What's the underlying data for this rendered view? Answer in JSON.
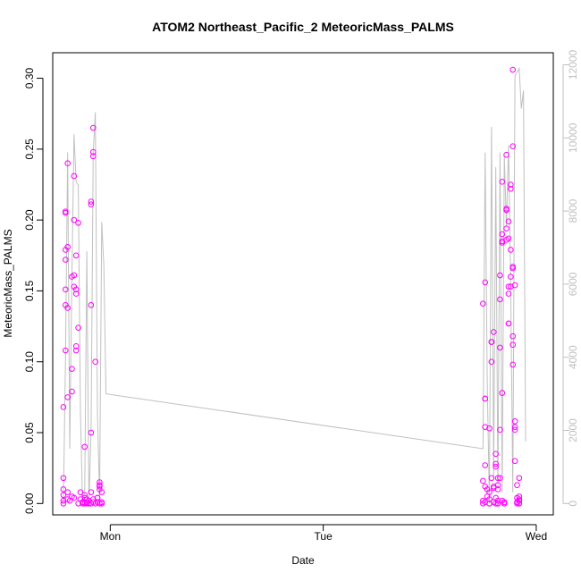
{
  "chart_data": {
    "type": "scatter",
    "title": "ATOM2 Northeast_Pacific_2 MeteoricMass_PALMS",
    "xlabel": "Date",
    "ylabel": "MeteoricMass_PALMS",
    "x_unit": "days (Sun 00:00 = 0)",
    "x_ticks": [
      {
        "value": 1,
        "label": "Mon"
      },
      {
        "value": 2,
        "label": "Tue"
      },
      {
        "value": 3,
        "label": "Wed"
      }
    ],
    "xlim": [
      0.73,
      3.08
    ],
    "ylim": [
      -0.008,
      0.318
    ],
    "y_ticks": [
      0.0,
      0.05,
      0.1,
      0.15,
      0.2,
      0.25,
      0.3
    ],
    "y_tick_labels": [
      "0.00",
      "0.05",
      "0.10",
      "0.15",
      "0.20",
      "0.25",
      "0.30"
    ],
    "y2_ticks": [
      0,
      2000,
      4000,
      6000,
      8000,
      10000,
      12000
    ],
    "y2_tick_labels": [
      "0",
      "2000",
      "4000",
      "6000",
      "8000",
      "10000",
      "12000"
    ],
    "y2_lim": [
      -310,
      12330
    ],
    "grid": false,
    "colors": {
      "points": "#ff00ff",
      "line": "#c0c0c0",
      "axis": "#000000",
      "right_axis": "#c0c0c0"
    },
    "series": [
      {
        "kind": "points",
        "points": [
          [
            0.78,
            0.0
          ],
          [
            0.78,
            0.002
          ],
          [
            0.78,
            0.006
          ],
          [
            0.78,
            0.01
          ],
          [
            0.78,
            0.018
          ],
          [
            0.78,
            0.068
          ],
          [
            0.79,
            0.108
          ],
          [
            0.79,
            0.14
          ],
          [
            0.79,
            0.151
          ],
          [
            0.79,
            0.172
          ],
          [
            0.79,
            0.179
          ],
          [
            0.79,
            0.205
          ],
          [
            0.79,
            0.206
          ],
          [
            0.8,
            0.24
          ],
          [
            0.8,
            0.181
          ],
          [
            0.8,
            0.138
          ],
          [
            0.8,
            0.075
          ],
          [
            0.8,
            0.008
          ],
          [
            0.8,
            0.003
          ],
          [
            0.81,
            0.002
          ],
          [
            0.82,
            0.005
          ],
          [
            0.82,
            0.095
          ],
          [
            0.82,
            0.079
          ],
          [
            0.82,
            0.16
          ],
          [
            0.83,
            0.231
          ],
          [
            0.83,
            0.2
          ],
          [
            0.83,
            0.161
          ],
          [
            0.83,
            0.153
          ],
          [
            0.83,
            0.004
          ],
          [
            0.84,
            0.108
          ],
          [
            0.84,
            0.111
          ],
          [
            0.84,
            0.148
          ],
          [
            0.84,
            0.175
          ],
          [
            0.84,
            0.151
          ],
          [
            0.85,
            0.124
          ],
          [
            0.85,
            0.198
          ],
          [
            0.85,
            0.0
          ],
          [
            0.86,
            0.008
          ],
          [
            0.86,
            0.003
          ],
          [
            0.87,
            0.0
          ],
          [
            0.87,
            0.001
          ],
          [
            0.87,
            0.001
          ],
          [
            0.88,
            0.04
          ],
          [
            0.88,
            0.004
          ],
          [
            0.88,
            0.006
          ],
          [
            0.88,
            0.0
          ],
          [
            0.89,
            0.003
          ],
          [
            0.89,
            0.001
          ],
          [
            0.89,
            0.0
          ],
          [
            0.9,
            0.002
          ],
          [
            0.9,
            0.0
          ],
          [
            0.91,
            0.008
          ],
          [
            0.91,
            0.0
          ],
          [
            0.91,
            0.05
          ],
          [
            0.91,
            0.14
          ],
          [
            0.91,
            0.213
          ],
          [
            0.91,
            0.211
          ],
          [
            0.92,
            0.245
          ],
          [
            0.92,
            0.248
          ],
          [
            0.92,
            0.265
          ],
          [
            0.92,
            0.001
          ],
          [
            0.92,
            0.003
          ],
          [
            0.93,
            0.1
          ],
          [
            0.93,
            0.0
          ],
          [
            0.94,
            0.004
          ],
          [
            0.94,
            0.004
          ],
          [
            0.94,
            0.001
          ],
          [
            0.95,
            0.0
          ],
          [
            0.95,
            0.012
          ],
          [
            0.95,
            0.015
          ],
          [
            0.95,
            0.013
          ],
          [
            0.95,
            0.01
          ],
          [
            0.96,
            0.008
          ],
          [
            0.96,
            0.001
          ],
          [
            0.96,
            0.0
          ],
          [
            2.75,
            0.141
          ],
          [
            2.75,
            0.016
          ],
          [
            2.75,
            0.0
          ],
          [
            2.75,
            0.002
          ],
          [
            2.76,
            0.074
          ],
          [
            2.76,
            0.074
          ],
          [
            2.76,
            0.054
          ],
          [
            2.76,
            0.156
          ],
          [
            2.76,
            0.027
          ],
          [
            2.76,
            0.012
          ],
          [
            2.76,
            0.001
          ],
          [
            2.77,
            0.01
          ],
          [
            2.77,
            0.005
          ],
          [
            2.78,
            0.003
          ],
          [
            2.78,
            0.0
          ],
          [
            2.78,
            0.0
          ],
          [
            2.78,
            0.008
          ],
          [
            2.78,
            0.053
          ],
          [
            2.79,
            0.114
          ],
          [
            2.79,
            0.114
          ],
          [
            2.79,
            0.1
          ],
          [
            2.79,
            0.018
          ],
          [
            2.8,
            0.121
          ],
          [
            2.8,
            0.012
          ],
          [
            2.8,
            0.001
          ],
          [
            2.8,
            0.011
          ],
          [
            2.81,
            0.028
          ],
          [
            2.81,
            0.026
          ],
          [
            2.81,
            0.0
          ],
          [
            2.81,
            0.035
          ],
          [
            2.81,
            0.004
          ],
          [
            2.82,
            0.018
          ],
          [
            2.82,
            0.013
          ],
          [
            2.82,
            0.0
          ],
          [
            2.82,
            0.01
          ],
          [
            2.82,
            0.002
          ],
          [
            2.82,
            0.0
          ],
          [
            2.83,
            0.018
          ],
          [
            2.83,
            0.161
          ],
          [
            2.83,
            0.052
          ],
          [
            2.83,
            0.11
          ],
          [
            2.83,
            0.144
          ],
          [
            2.84,
            0.227
          ],
          [
            2.84,
            0.19
          ],
          [
            2.84,
            0.185
          ],
          [
            2.84,
            0.184
          ],
          [
            2.84,
            0.078
          ],
          [
            2.84,
            0.002
          ],
          [
            2.85,
            0.001
          ],
          [
            2.85,
            0.0
          ],
          [
            2.85,
            0.0
          ],
          [
            2.86,
            0.186
          ],
          [
            2.86,
            0.207
          ],
          [
            2.86,
            0.208
          ],
          [
            2.86,
            0.246
          ],
          [
            2.86,
            0.194
          ],
          [
            2.87,
            0.153
          ],
          [
            2.87,
            0.127
          ],
          [
            2.87,
            0.127
          ],
          [
            2.87,
            0.187
          ],
          [
            2.87,
            0.199
          ],
          [
            2.87,
            0.148
          ],
          [
            2.88,
            0.222
          ],
          [
            2.88,
            0.225
          ],
          [
            2.88,
            0.179
          ],
          [
            2.88,
            0.16
          ],
          [
            2.88,
            0.153
          ],
          [
            2.89,
            0.166
          ],
          [
            2.89,
            0.167
          ],
          [
            2.89,
            0.118
          ],
          [
            2.89,
            0.112
          ],
          [
            2.89,
            0.098
          ],
          [
            2.89,
            0.252
          ],
          [
            2.89,
            0.306
          ],
          [
            2.9,
            0.154
          ],
          [
            2.9,
            0.054
          ],
          [
            2.9,
            0.058
          ],
          [
            2.9,
            0.03
          ],
          [
            2.9,
            0.052
          ],
          [
            2.91,
            0.013
          ],
          [
            2.91,
            0.004
          ],
          [
            2.91,
            0.0
          ],
          [
            2.91,
            0.001
          ],
          [
            2.92,
            0.018
          ],
          [
            2.92,
            0.002
          ],
          [
            2.92,
            0.005
          ],
          [
            2.92,
            0.003
          ],
          [
            2.92,
            0.0
          ],
          [
            2.92,
            0.0
          ]
        ]
      },
      {
        "kind": "line",
        "axis": "right",
        "points": [
          [
            0.78,
            0
          ],
          [
            0.79,
            4000
          ],
          [
            0.8,
            9600
          ],
          [
            0.81,
            1500
          ],
          [
            0.82,
            6200
          ],
          [
            0.83,
            10100
          ],
          [
            0.84,
            8800
          ],
          [
            0.85,
            8700
          ],
          [
            0.86,
            2500
          ],
          [
            0.87,
            0
          ],
          [
            0.88,
            200
          ],
          [
            0.89,
            6900
          ],
          [
            0.9,
            0
          ],
          [
            0.91,
            2000
          ],
          [
            0.92,
            9600
          ],
          [
            0.93,
            10700
          ],
          [
            0.94,
            2400
          ],
          [
            0.95,
            200
          ],
          [
            0.96,
            7700
          ],
          [
            0.97,
            6500
          ],
          [
            0.98,
            3000
          ],
          [
            2.75,
            1500
          ],
          [
            2.76,
            9600
          ],
          [
            2.77,
            3300
          ],
          [
            2.78,
            0
          ],
          [
            2.79,
            10300
          ],
          [
            2.8,
            700
          ],
          [
            2.81,
            9200
          ],
          [
            2.82,
            400
          ],
          [
            2.83,
            9600
          ],
          [
            2.84,
            300
          ],
          [
            2.85,
            9500
          ],
          [
            2.86,
            7600
          ],
          [
            2.87,
            9800
          ],
          [
            2.88,
            6000
          ],
          [
            2.89,
            300
          ],
          [
            2.9,
            11700
          ],
          [
            2.91,
            11800
          ],
          [
            2.92,
            11900
          ],
          [
            2.93,
            10800
          ],
          [
            2.94,
            11300
          ],
          [
            2.95,
            1700
          ]
        ]
      }
    ]
  }
}
